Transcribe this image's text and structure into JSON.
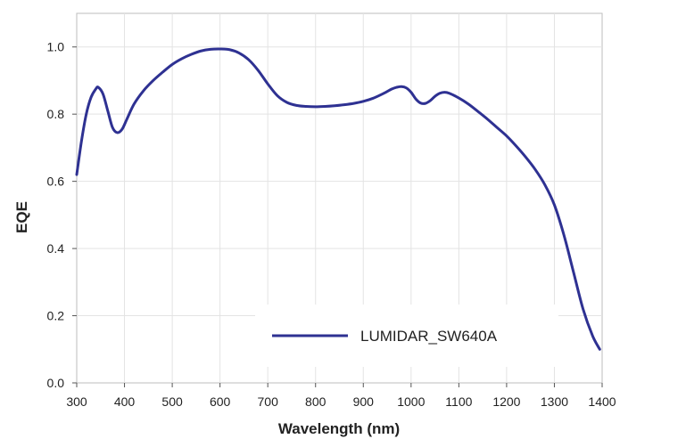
{
  "chart_data": {
    "type": "line",
    "title": "",
    "xlabel": "Wavelength (nm)",
    "ylabel": "EQE",
    "xlim": [
      300,
      1400
    ],
    "ylim": [
      0.0,
      1.1
    ],
    "xticks": [
      300,
      400,
      500,
      600,
      700,
      800,
      900,
      1000,
      1100,
      1200,
      1300,
      1400
    ],
    "yticks": [
      "0.0",
      "0.2",
      "0.4",
      "0.6",
      "0.8",
      "1.0"
    ],
    "grid": true,
    "legend_position": "bottom-right",
    "series": [
      {
        "name": "LUMIDAR_SW640A",
        "color": "#2e3192",
        "x": [
          300,
          310,
          320,
          330,
          340,
          345,
          355,
          365,
          375,
          385,
          395,
          405,
          420,
          440,
          460,
          480,
          500,
          520,
          540,
          560,
          580,
          600,
          620,
          640,
          660,
          680,
          700,
          720,
          740,
          760,
          780,
          800,
          820,
          840,
          860,
          880,
          900,
          920,
          940,
          960,
          970,
          980,
          990,
          1000,
          1010,
          1020,
          1030,
          1040,
          1050,
          1060,
          1070,
          1080,
          1100,
          1120,
          1140,
          1160,
          1180,
          1200,
          1220,
          1240,
          1260,
          1280,
          1300,
          1320,
          1340,
          1360,
          1380,
          1395
        ],
        "y": [
          0.62,
          0.72,
          0.8,
          0.85,
          0.875,
          0.88,
          0.86,
          0.81,
          0.76,
          0.745,
          0.755,
          0.785,
          0.83,
          0.87,
          0.9,
          0.925,
          0.948,
          0.965,
          0.978,
          0.988,
          0.993,
          0.994,
          0.992,
          0.982,
          0.962,
          0.93,
          0.89,
          0.855,
          0.835,
          0.826,
          0.823,
          0.822,
          0.823,
          0.825,
          0.828,
          0.832,
          0.838,
          0.847,
          0.86,
          0.875,
          0.88,
          0.882,
          0.878,
          0.865,
          0.845,
          0.833,
          0.832,
          0.84,
          0.853,
          0.862,
          0.865,
          0.862,
          0.848,
          0.83,
          0.808,
          0.785,
          0.76,
          0.735,
          0.705,
          0.672,
          0.635,
          0.59,
          0.53,
          0.44,
          0.33,
          0.22,
          0.14,
          0.1
        ]
      }
    ]
  }
}
